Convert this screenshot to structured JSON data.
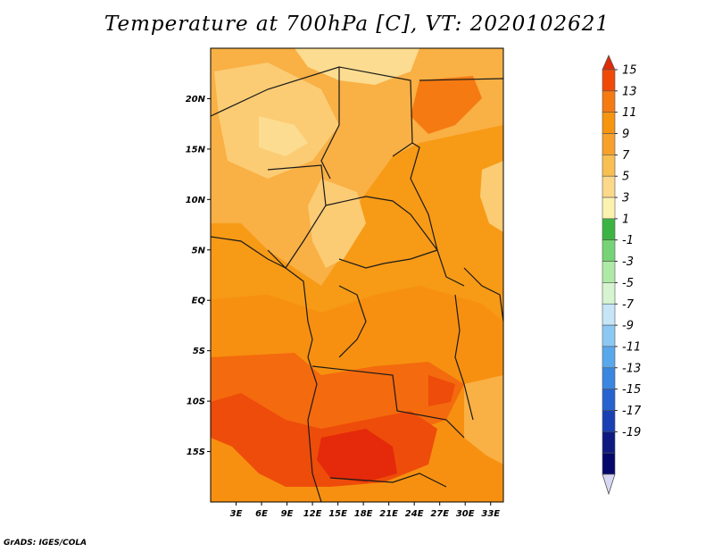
{
  "title": "Temperature at 700hPa [C], VT: 2020102621",
  "footer": "GrADS: IGES/COLA",
  "map": {
    "lon_range": [
      0,
      34.5
    ],
    "lat_range": [
      -20,
      25
    ],
    "lat_ticks": [
      {
        "value": 20,
        "label": "20N"
      },
      {
        "value": 15,
        "label": "15N"
      },
      {
        "value": 10,
        "label": "10N"
      },
      {
        "value": 5,
        "label": "5N"
      },
      {
        "value": 0,
        "label": "EQ"
      },
      {
        "value": -5,
        "label": "5S"
      },
      {
        "value": -10,
        "label": "10S"
      },
      {
        "value": -15,
        "label": "15S"
      }
    ],
    "lon_ticks": [
      {
        "value": 3,
        "label": "3E"
      },
      {
        "value": 6,
        "label": "6E"
      },
      {
        "value": 9,
        "label": "9E"
      },
      {
        "value": 12,
        "label": "12E"
      },
      {
        "value": 15,
        "label": "15E"
      },
      {
        "value": 18,
        "label": "18E"
      },
      {
        "value": 21,
        "label": "21E"
      },
      {
        "value": 24,
        "label": "24E"
      },
      {
        "value": 27,
        "label": "27E"
      },
      {
        "value": 30,
        "label": "30E"
      },
      {
        "value": 33,
        "label": "33E"
      }
    ]
  },
  "colorbar": {
    "labels": [
      "15",
      "13",
      "11",
      "9",
      "7",
      "5",
      "3",
      "1",
      "-1",
      "-3",
      "-5",
      "-7",
      "-9",
      "-11",
      "-13",
      "-15",
      "-17",
      "-19"
    ],
    "colors": [
      "#f04a08",
      "#f57a12",
      "#f79410",
      "#f7a02a",
      "#f9bf52",
      "#fbd88a",
      "#fcf2b0",
      "#3cb444",
      "#76d476",
      "#aeeaa6",
      "#d6f4d0",
      "#c6e6f8",
      "#8cc8f4",
      "#5aa8ec",
      "#3a86e0",
      "#2662d0",
      "#1840b4",
      "#0e1a80",
      "#05086a"
    ],
    "upper_arrow_color": "#e02a0a",
    "lower_arrow_color": "#d8d8f4"
  },
  "colors": {
    "base": "#f79a16",
    "warm_light": "#f9b044",
    "pale": "#fbcc74",
    "pale2": "#fcdc90",
    "dark": "#f46a0e",
    "darker": "#ee4c0a",
    "hottest": "#e42a0a",
    "border": "#1a1a1a"
  }
}
